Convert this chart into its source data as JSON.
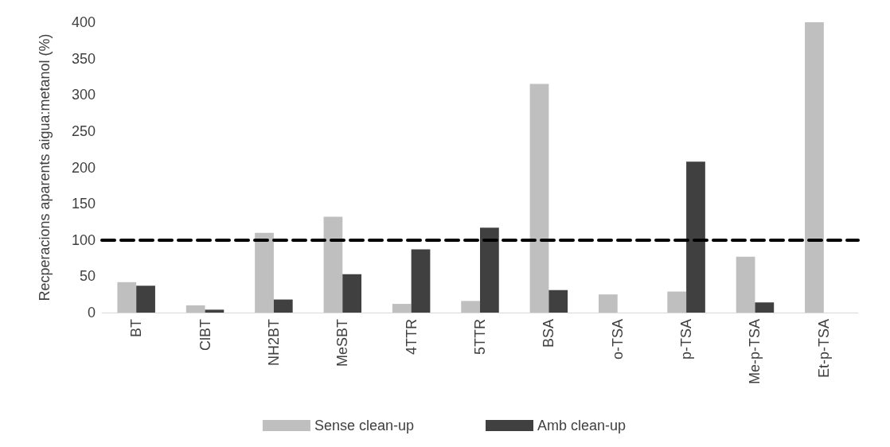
{
  "chart_data": {
    "type": "bar",
    "ylabel": "Recperacions aparents aigua:metanol (%)",
    "categories": [
      "BT",
      "ClBT",
      "NH2BT",
      "MeSBT",
      "4TTR",
      "5TTR",
      "BSA",
      "o-TSA",
      "p-TSA",
      "Me-p-TSA",
      "Et-p-TSA"
    ],
    "series": [
      {
        "name": "Sense clean-up",
        "color": "#bfbfbf",
        "values": [
          42,
          10,
          110,
          132,
          12,
          16,
          315,
          25,
          29,
          77,
          400
        ]
      },
      {
        "name": "Amb clean-up",
        "color": "#404040",
        "values": [
          37,
          4,
          18,
          53,
          87,
          117,
          31,
          null,
          208,
          14,
          null
        ]
      }
    ],
    "ylim": [
      0,
      400
    ],
    "yticks": [
      0,
      50,
      100,
      150,
      200,
      250,
      300,
      350,
      400
    ],
    "grid": false,
    "legend": "bottom",
    "ref_lines": [
      {
        "axis": "y",
        "value": 100,
        "color": "#000000",
        "line_style": "dashed"
      }
    ]
  }
}
